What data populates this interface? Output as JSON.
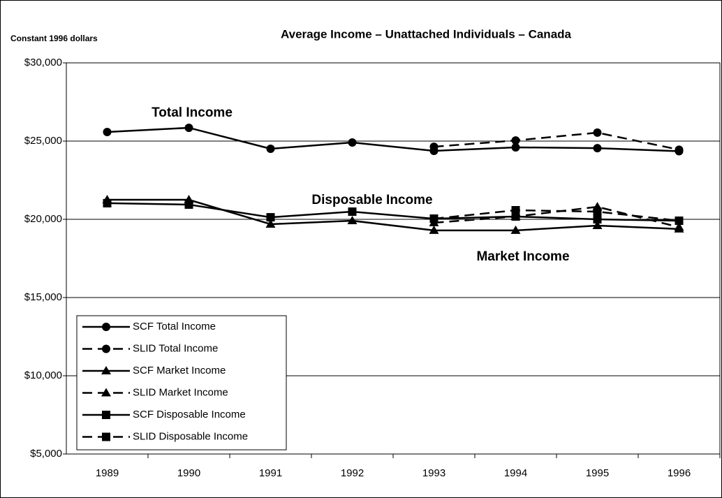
{
  "chart_data": {
    "type": "line",
    "title": "Average Income – Unattached Individuals – Canada",
    "y_axis_label": "Constant 1996 dollars",
    "annotations": [
      "Total Income",
      "Disposable Income",
      "Market Income"
    ],
    "categories": [
      "1989",
      "1990",
      "1991",
      "1992",
      "1993",
      "1994",
      "1995",
      "1996"
    ],
    "series": [
      {
        "name": "SCF Total Income",
        "color": "#000000",
        "marker": "circle",
        "dashed": false,
        "values": [
          25580,
          25850,
          24510,
          24910,
          24375,
          24600,
          24550,
          24350
        ]
      },
      {
        "name": "SLID Total Income",
        "color": "#000000",
        "marker": "circle",
        "dashed": true,
        "values": [
          null,
          null,
          null,
          null,
          24640,
          25040,
          25540,
          24450
        ]
      },
      {
        "name": "SCF Market Income",
        "color": "#000000",
        "marker": "triangle",
        "dashed": false,
        "values": [
          21250,
          21250,
          19690,
          19910,
          19290,
          19290,
          19600,
          19380
        ]
      },
      {
        "name": "SLID Market Income",
        "color": "#000000",
        "marker": "triangle",
        "dashed": true,
        "values": [
          null,
          null,
          null,
          null,
          19780,
          20180,
          20800,
          19500
        ]
      },
      {
        "name": "SCF Disposable Income",
        "color": "#000000",
        "marker": "square",
        "dashed": false,
        "values": [
          21030,
          20940,
          20130,
          20490,
          20040,
          20180,
          20000,
          19910
        ]
      },
      {
        "name": "SLID Disposable Income",
        "color": "#000000",
        "marker": "square",
        "dashed": true,
        "values": [
          null,
          null,
          null,
          null,
          20040,
          20580,
          20490,
          19910
        ]
      }
    ],
    "ylim": [
      5000,
      30000
    ],
    "yticks": [
      {
        "value": 5000,
        "label": "$5,000"
      },
      {
        "value": 10000,
        "label": "$10,000"
      },
      {
        "value": 15000,
        "label": "$15,000"
      },
      {
        "value": 20000,
        "label": "$20,000"
      },
      {
        "value": 25000,
        "label": "$25,000"
      },
      {
        "value": 30000,
        "label": "$30,000"
      }
    ],
    "grid": true,
    "legend": "lower left"
  }
}
